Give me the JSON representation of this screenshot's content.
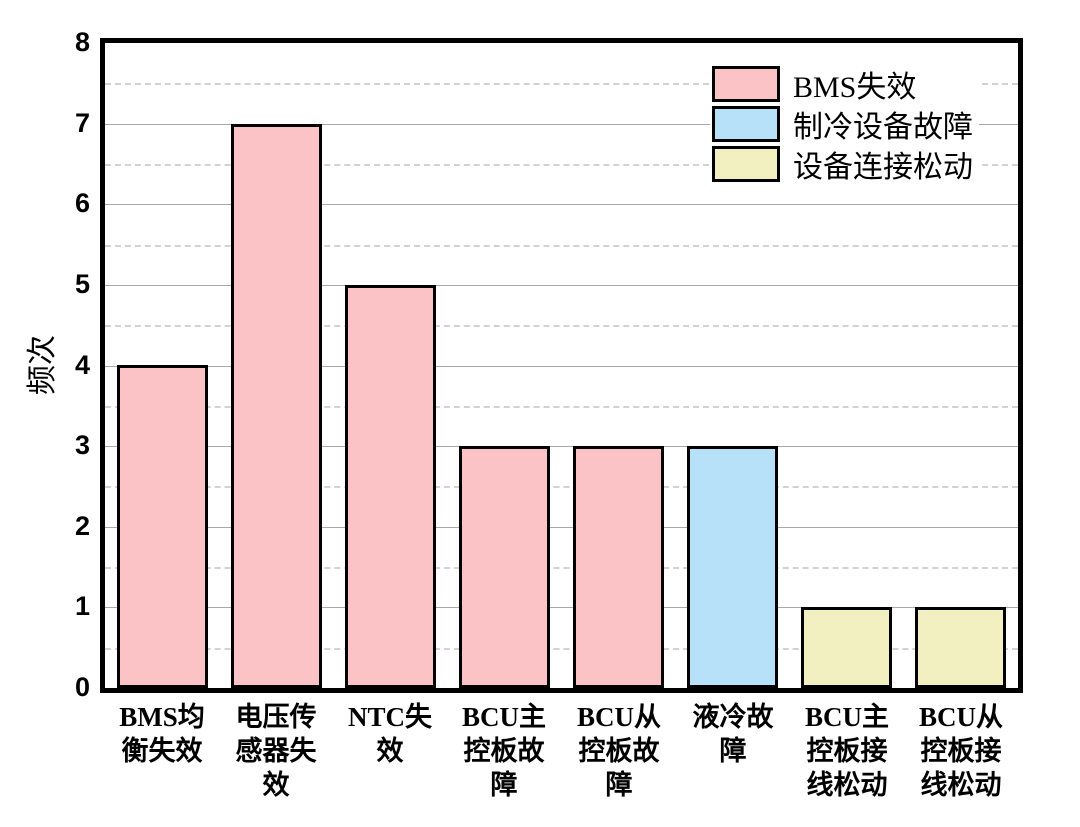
{
  "chart_data": {
    "type": "bar",
    "title": "",
    "xlabel": "",
    "ylabel": "频次",
    "ylim": [
      0,
      8
    ],
    "ytick_step": 1,
    "minor_tick_step": 0.5,
    "grid": "major-solid-minor-dashed",
    "legend_position": "upper-right",
    "categories": [
      "BMS均衡失效",
      "电压传感器失效",
      "NTC失效",
      "BCU主控板故障",
      "BCU从控板故障",
      "液冷故障",
      "BCU主控板接线松动",
      "BCU从控板接线松动"
    ],
    "category_display": [
      "BMS均\n衡失效",
      "电压传\n感器失\n效",
      "NTC失\n效",
      "BCU主\n控板故\n障",
      "BCU从\n控板故\n障",
      "液冷故\n障",
      "BCU主\n控板接\n线松动",
      "BCU从\n控板接\n线松动"
    ],
    "values": [
      4,
      7,
      5,
      3,
      3,
      3,
      1,
      1
    ],
    "groups": [
      "bms",
      "bms",
      "bms",
      "bms",
      "bms",
      "cooling",
      "loose",
      "loose"
    ],
    "legend": [
      {
        "key": "bms",
        "label": "BMS失效",
        "color": "#fbc3c5"
      },
      {
        "key": "cooling",
        "label": "制冷设备故障",
        "color": "#b6e1f9"
      },
      {
        "key": "loose",
        "label": "设备连接松动",
        "color": "#f2f0c1"
      }
    ],
    "bar_border_color": "#000000",
    "axis_color": "#000000",
    "major_grid_color": "#a8a8a8",
    "minor_grid_color": "#d2d2d2"
  }
}
